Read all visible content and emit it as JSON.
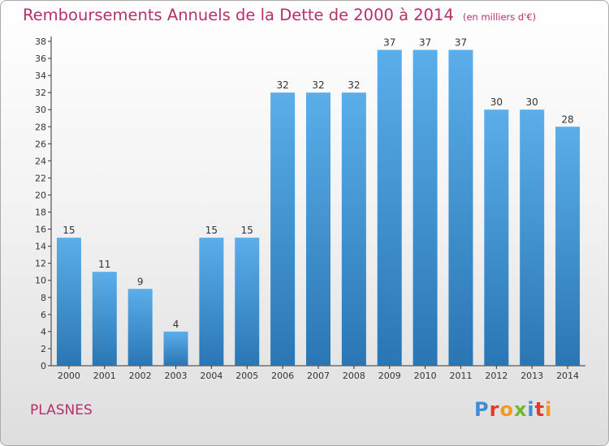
{
  "title": "Remboursements Annuels de la Dette de 2000 à 2014",
  "unit": "(en milliers d'€)",
  "commune": "PLASNES",
  "brand": "Proxiti",
  "colors": {
    "accent": "#b5306b",
    "bar_top": "#5aaeea",
    "bar_bottom": "#2a76b5",
    "brand": [
      "#3c8fd6",
      "#e23b2e",
      "#f39b1e",
      "#6fba2c",
      "#3c8fd6",
      "#e23b2e",
      "#f39b1e"
    ]
  },
  "chart_data": {
    "type": "bar",
    "categories": [
      "2000",
      "2001",
      "2002",
      "2003",
      "2004",
      "2005",
      "2006",
      "2007",
      "2008",
      "2009",
      "2010",
      "2011",
      "2012",
      "2013",
      "2014"
    ],
    "values": [
      15,
      11,
      9,
      4,
      15,
      15,
      32,
      32,
      32,
      37,
      37,
      37,
      30,
      30,
      28
    ],
    "title": "Remboursements Annuels de la Dette de 2000 à 2014",
    "xlabel": "",
    "ylabel": "",
    "ylim": [
      0,
      38
    ],
    "yticks": [
      0,
      2,
      4,
      6,
      8,
      10,
      12,
      14,
      16,
      18,
      20,
      22,
      24,
      26,
      28,
      30,
      32,
      34,
      36,
      38
    ],
    "grid": false,
    "legend": "none"
  }
}
